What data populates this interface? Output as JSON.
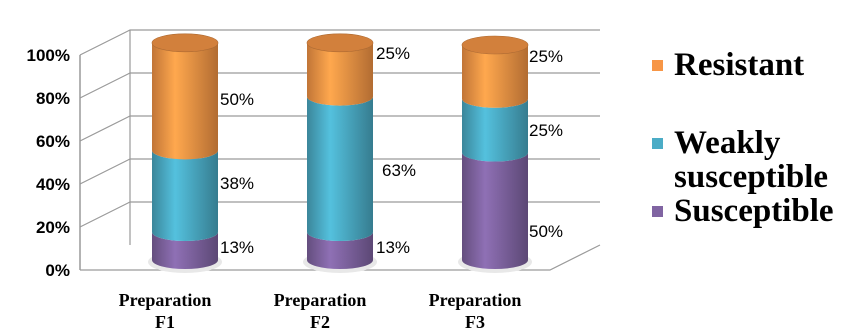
{
  "chart_data": {
    "type": "bar",
    "stacked": true,
    "style": "3d-cylinder",
    "categories": [
      "Preparation F1",
      "Preparation F2",
      "Preparation F3"
    ],
    "category_lines": [
      [
        "Preparation",
        "F1"
      ],
      [
        "Preparation",
        "F2"
      ],
      [
        "Preparation",
        "F3"
      ]
    ],
    "series": [
      {
        "name": "Susceptible",
        "color": "#8064A2",
        "values": [
          13,
          13,
          50
        ],
        "labels": [
          "13%",
          "13%",
          "50%"
        ]
      },
      {
        "name": "Weakly susceptible",
        "color": "#4BACC6",
        "values": [
          38,
          63,
          25
        ],
        "labels": [
          "38%",
          "63%",
          "25%"
        ]
      },
      {
        "name": "Resistant",
        "color": "#F79646",
        "values": [
          50,
          25,
          25
        ],
        "labels": [
          "50%",
          "25%",
          "25%"
        ]
      }
    ],
    "yticks": [
      "0%",
      "20%",
      "40%",
      "60%",
      "80%",
      "100%"
    ],
    "ylim": [
      0,
      100
    ],
    "grid": true,
    "legend_position": "right"
  },
  "legend": [
    {
      "label": "Resistant",
      "color": "#F79646"
    },
    {
      "label": "Weakly susceptible",
      "label_lines": [
        "Weakly",
        "susceptible"
      ],
      "color": "#4BACC6"
    },
    {
      "label": "Susceptible",
      "color": "#8064A2"
    }
  ]
}
